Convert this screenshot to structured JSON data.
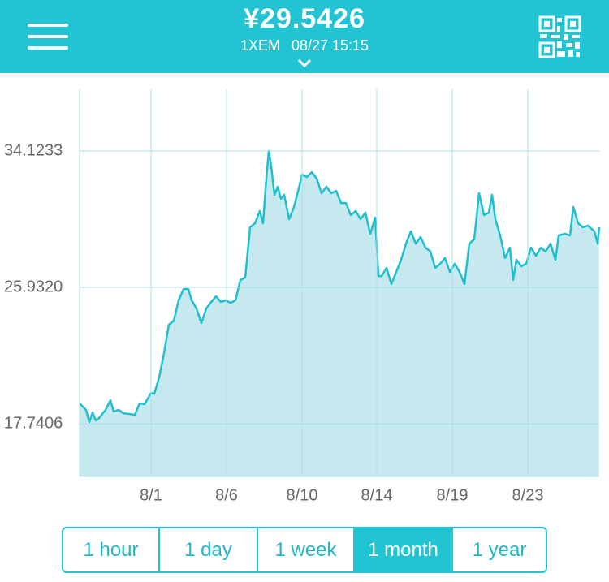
{
  "header": {
    "price": "¥29.5426",
    "unit": "1XEM",
    "datetime": "08/27 15:15"
  },
  "chart_data": {
    "type": "area",
    "x": [
      0,
      1,
      1.5,
      2,
      2.5,
      3,
      4,
      4.75,
      5.25,
      6,
      6.75,
      7.75,
      8.5,
      9.25,
      10,
      11,
      11.5,
      12.25,
      13,
      13.75,
      14.5,
      15.25,
      16,
      16.75,
      17.25,
      18,
      18.75,
      19.5,
      20.25,
      21,
      21.75,
      22.5,
      23.25,
      24,
      24.75,
      25.5,
      26.25,
      27,
      27.75,
      28.25,
      28.75,
      29.125,
      29.5,
      30,
      30.5,
      31,
      31.5,
      32.25,
      33,
      33.75,
      34.25,
      35,
      35.75,
      36.5,
      37.25,
      38,
      38.75,
      39.5,
      40.25,
      41,
      41.75,
      42.5,
      43.25,
      44,
      44.75,
      45.5,
      46,
      46.5,
      47.25,
      48,
      48.75,
      49.5,
      50.25,
      51,
      51.75,
      52.5,
      53.25,
      54,
      54.75,
      55.5,
      56.25,
      57,
      57.75,
      58.5,
      59.25,
      60,
      60.75,
      61.5,
      62.25,
      63,
      63.5,
      64,
      64.75,
      65.5,
      66.25,
      66.75,
      67.25,
      68,
      68.75,
      69.5,
      70.25,
      71,
      71.75,
      72.5,
      73.25,
      73.75,
      74.75,
      75.5,
      76,
      76.75,
      77.5,
      78.25,
      79.25,
      79.75,
      80
    ],
    "values": [
      18.96,
      18.57,
      17.84,
      18.42,
      17.93,
      18.08,
      18.57,
      19.15,
      18.47,
      18.57,
      18.37,
      18.32,
      18.27,
      18.96,
      18.91,
      19.59,
      19.54,
      20.52,
      21.98,
      23.69,
      23.93,
      25.15,
      25.83,
      25.83,
      25.15,
      24.66,
      23.79,
      24.66,
      25.05,
      25.39,
      25.05,
      25.15,
      25.0,
      25.15,
      26.37,
      26.52,
      29.54,
      29.78,
      30.52,
      29.78,
      32.47,
      34.12,
      33.2,
      31.49,
      31.98,
      31.25,
      31.49,
      30.03,
      30.76,
      31.88,
      32.71,
      32.56,
      32.85,
      32.47,
      31.59,
      31.98,
      31.59,
      31.73,
      31.0,
      31.0,
      30.27,
      30.52,
      30.03,
      30.42,
      29.15,
      30.12,
      26.61,
      26.61,
      27.1,
      26.13,
      26.86,
      27.59,
      28.56,
      29.3,
      28.56,
      28.95,
      28.32,
      28.08,
      27.1,
      27.35,
      27.69,
      26.86,
      27.35,
      26.86,
      26.13,
      28.56,
      28.81,
      31.59,
      30.27,
      30.42,
      31.49,
      30.03,
      29.05,
      27.69,
      28.32,
      26.37,
      27.59,
      27.2,
      27.35,
      28.32,
      27.83,
      28.32,
      28.08,
      28.56,
      27.59,
      29.05,
      29.15,
      29.05,
      30.76,
      29.78,
      29.54,
      29.64,
      29.3,
      28.56,
      29.54
    ],
    "xlim": [
      0,
      80
    ],
    "xticks": [
      {
        "value": 11,
        "label": "8/1"
      },
      {
        "value": 22.625,
        "label": "8/6"
      },
      {
        "value": 34.25,
        "label": "8/10"
      },
      {
        "value": 45.75,
        "label": "8/14"
      },
      {
        "value": 57.375,
        "label": "8/19"
      },
      {
        "value": 69,
        "label": "8/23"
      }
    ],
    "ylim": [
      14.5713,
      37.8289
    ],
    "yticks": [
      17.7406,
      {
        "value": 25.932,
        "label": "25.9320"
      },
      34.1233
    ],
    "color": "#1fbfcf",
    "fill": "#c6e9ef",
    "grid": true
  },
  "buttons": {
    "options": [
      "1 hour",
      "1 day",
      "1 week",
      "1 month",
      "1 year"
    ],
    "selected": 3
  }
}
